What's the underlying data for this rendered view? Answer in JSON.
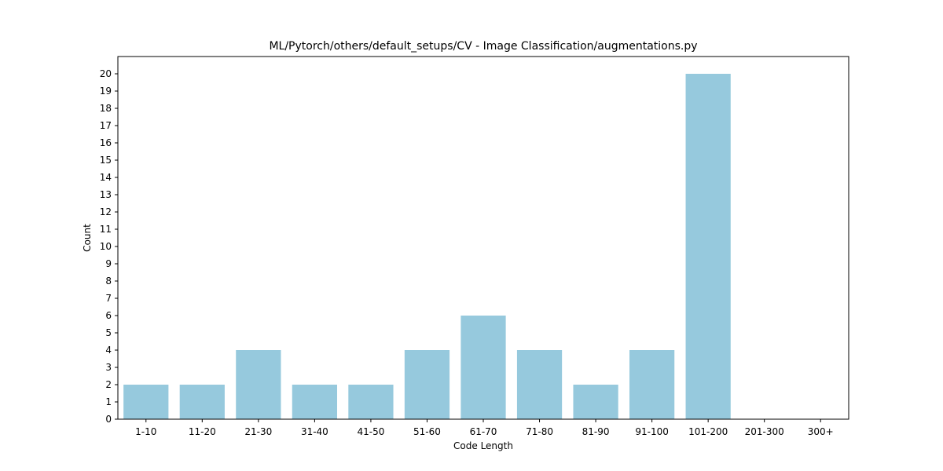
{
  "chart_data": {
    "type": "bar",
    "title": "ML/Pytorch/others/default_setups/CV - Image Classification/augmentations.py",
    "xlabel": "Code Length",
    "ylabel": "Count",
    "categories": [
      "1-10",
      "11-20",
      "21-30",
      "31-40",
      "41-50",
      "51-60",
      "61-70",
      "71-80",
      "81-90",
      "91-100",
      "101-200",
      "201-300",
      "300+"
    ],
    "values": [
      2,
      2,
      4,
      2,
      2,
      4,
      6,
      4,
      2,
      4,
      20,
      0,
      0
    ],
    "yticks": [
      "0",
      "1",
      "2",
      "3",
      "4",
      "5",
      "6",
      "7",
      "8",
      "9",
      "10",
      "11",
      "12",
      "13",
      "14",
      "15",
      "16",
      "17",
      "18",
      "19",
      "20"
    ],
    "ylim": [
      0,
      21
    ],
    "bar_color": "#96c9dd",
    "grid": false,
    "legend": "none"
  }
}
